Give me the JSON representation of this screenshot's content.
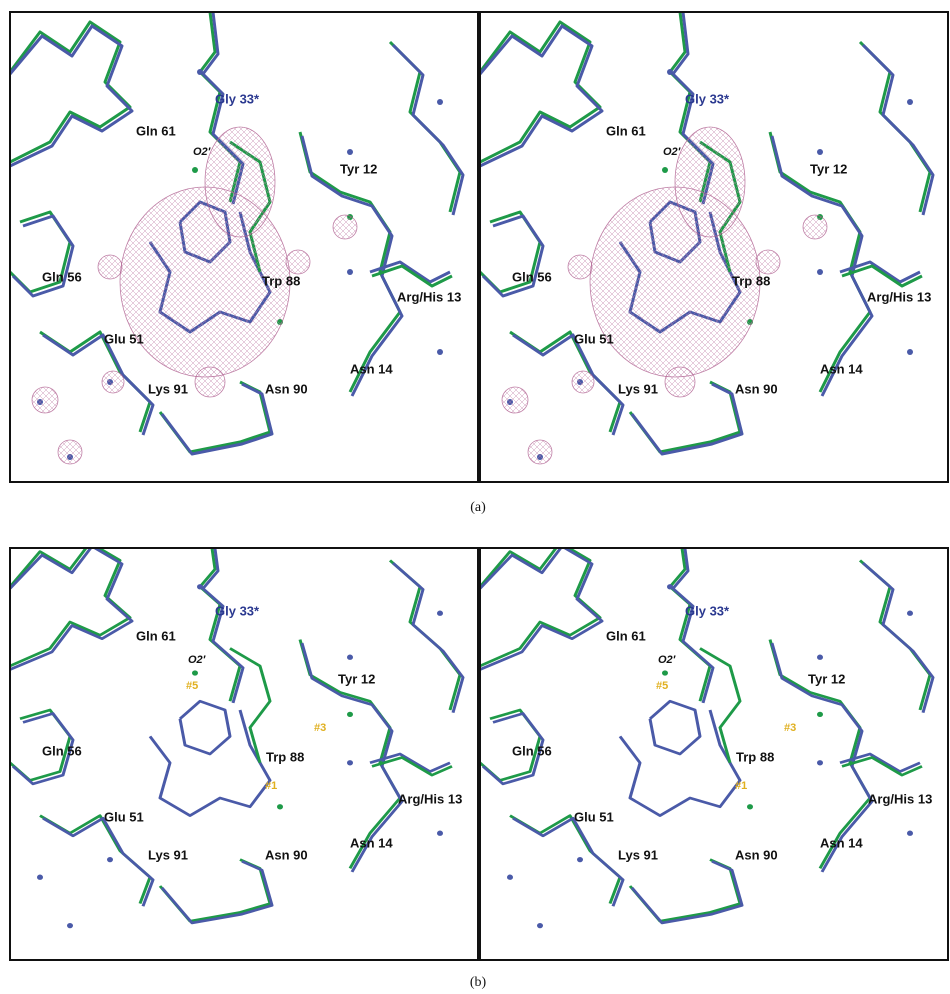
{
  "figure": {
    "panels": [
      {
        "caption": "(a)",
        "labels": [
          {
            "text": "Gly 33*",
            "kind": "blue"
          },
          {
            "text": "Gln 61",
            "kind": "res"
          },
          {
            "text": "O2′",
            "kind": "atom"
          },
          {
            "text": "Tyr 12",
            "kind": "res"
          },
          {
            "text": "Gln 56",
            "kind": "res"
          },
          {
            "text": "Trp 88",
            "kind": "res"
          },
          {
            "text": "Arg/His 13",
            "kind": "res"
          },
          {
            "text": "Glu 51",
            "kind": "res"
          },
          {
            "text": "Asn 14",
            "kind": "res"
          },
          {
            "text": "Lys 91",
            "kind": "res"
          },
          {
            "text": "Asn 90",
            "kind": "res"
          }
        ]
      },
      {
        "caption": "(b)",
        "labels": [
          {
            "text": "Gly 33*",
            "kind": "blue"
          },
          {
            "text": "Gln 61",
            "kind": "res"
          },
          {
            "text": "O2′",
            "kind": "atom"
          },
          {
            "text": "#5",
            "kind": "site"
          },
          {
            "text": "Tyr 12",
            "kind": "res"
          },
          {
            "text": "#3",
            "kind": "site"
          },
          {
            "text": "Gln 56",
            "kind": "res"
          },
          {
            "text": "Trp 88",
            "kind": "res"
          },
          {
            "text": "Arg/His 13",
            "kind": "res"
          },
          {
            "text": "#1",
            "kind": "site"
          },
          {
            "text": "Glu 51",
            "kind": "res"
          },
          {
            "text": "Asn 14",
            "kind": "res"
          },
          {
            "text": "Lys 91",
            "kind": "res"
          },
          {
            "text": "Asn 90",
            "kind": "res"
          }
        ]
      }
    ]
  }
}
